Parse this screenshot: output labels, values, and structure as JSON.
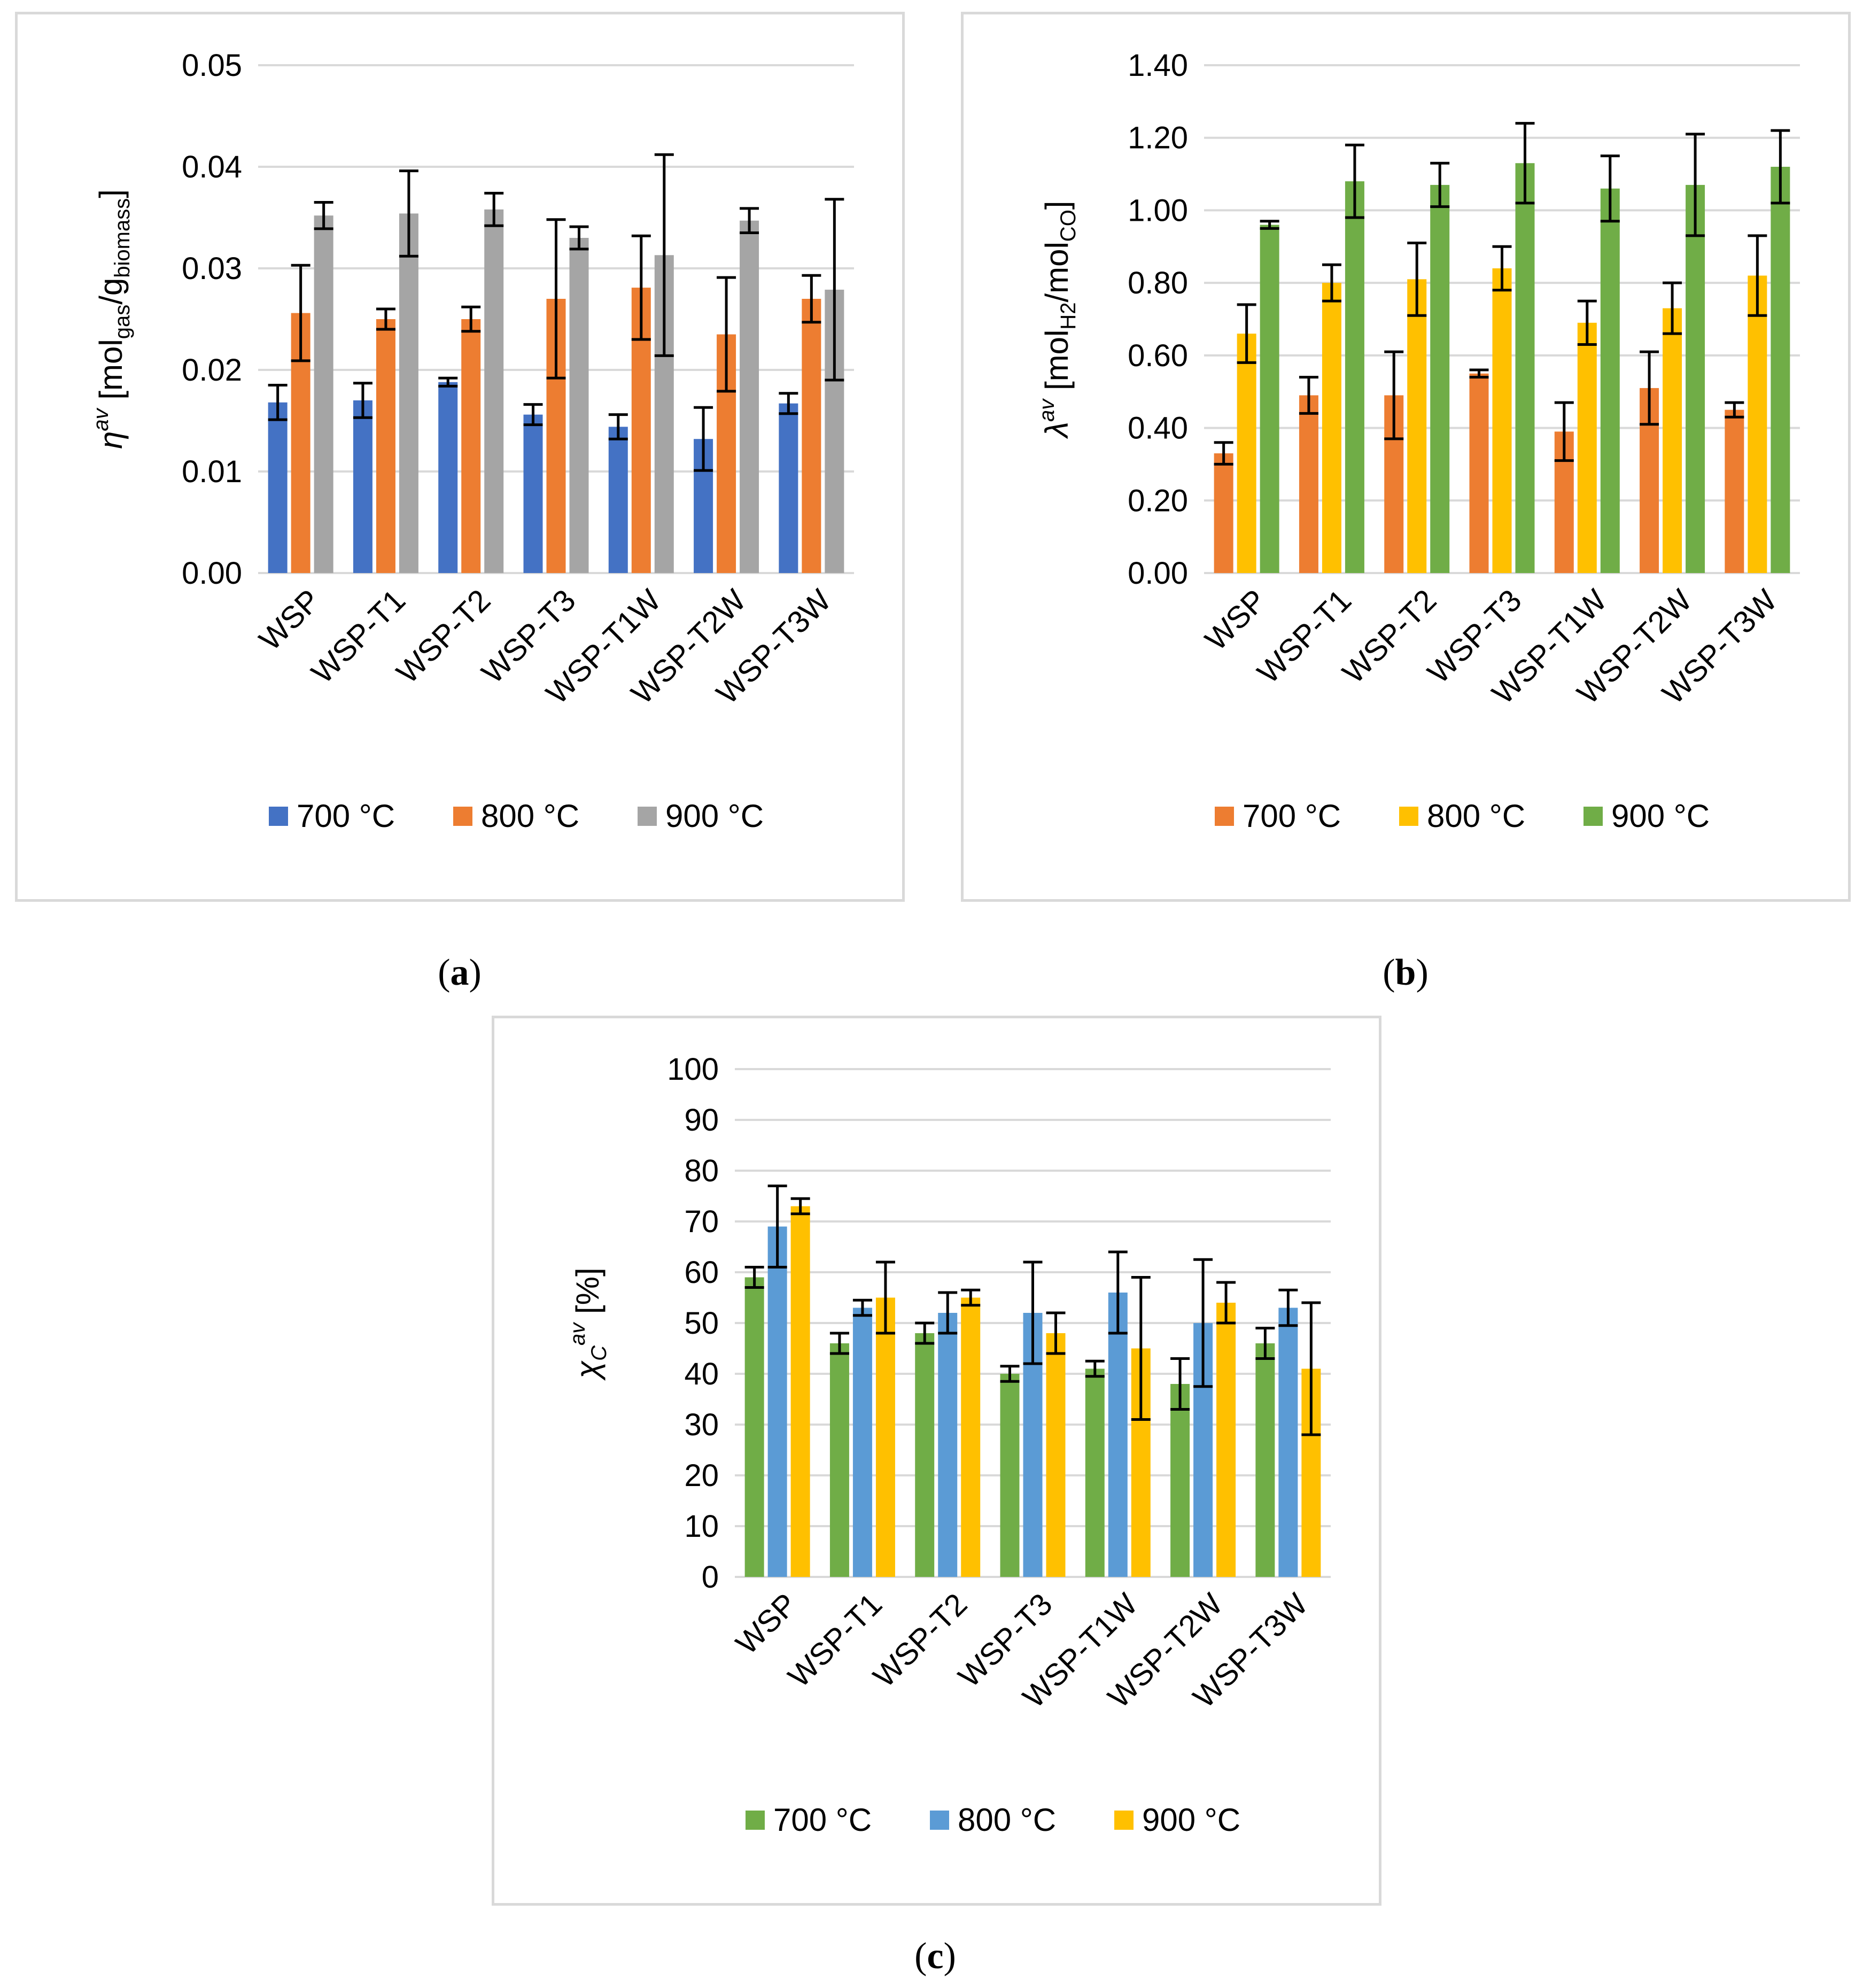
{
  "chart_data": [
    {
      "id": "a",
      "type": "bar",
      "caption_letter": "a",
      "ylabel_parts": {
        "symbol": "η",
        "sup": "av",
        "text1": " [mol",
        "sub1": "gas",
        "text2": "/g",
        "sub2": "biomass",
        "text3": "]"
      },
      "categories": [
        "WSP",
        "WSP-T1",
        "WSP-T2",
        "WSP-T3",
        "WSP-T1W",
        "WSP-T2W",
        "WSP-T3W"
      ],
      "ylim": [
        0,
        0.05
      ],
      "yticks": [
        0,
        0.01,
        0.02,
        0.03,
        0.04,
        0.05
      ],
      "ytick_labels": [
        "0.00",
        "0.01",
        "0.02",
        "0.03",
        "0.04",
        "0.05"
      ],
      "grid": true,
      "legend_position": "bottom",
      "series": [
        {
          "name": "700 °C",
          "color": "#4472c4",
          "values": [
            0.0168,
            0.017,
            0.0188,
            0.0156,
            0.0144,
            0.0132,
            0.0167
          ],
          "errors": [
            0.0017,
            0.0017,
            0.0004,
            0.001,
            0.0012,
            0.0031,
            0.001
          ]
        },
        {
          "name": "800 °C",
          "color": "#ed7d31",
          "values": [
            0.0256,
            0.025,
            0.025,
            0.027,
            0.0281,
            0.0235,
            0.027
          ],
          "errors": [
            0.0047,
            0.001,
            0.0012,
            0.0078,
            0.0051,
            0.0056,
            0.0023
          ]
        },
        {
          "name": "900 °C",
          "color": "#a5a5a5",
          "values": [
            0.0352,
            0.0354,
            0.0358,
            0.033,
            0.0313,
            0.0347,
            0.0279
          ],
          "errors": [
            0.0013,
            0.0042,
            0.0016,
            0.0011,
            0.0099,
            0.0012,
            0.0089
          ]
        }
      ]
    },
    {
      "id": "b",
      "type": "bar",
      "caption_letter": "b",
      "ylabel_parts": {
        "symbol": "λ",
        "sup": "av",
        "text1": " [mol",
        "sub1": "H2",
        "text2": "/mol",
        "sub2": "CO",
        "text3": "]"
      },
      "categories": [
        "WSP",
        "WSP-T1",
        "WSP-T2",
        "WSP-T3",
        "WSP-T1W",
        "WSP-T2W",
        "WSP-T3W"
      ],
      "ylim": [
        0,
        1.4
      ],
      "yticks": [
        0,
        0.2,
        0.4,
        0.6,
        0.8,
        1.0,
        1.2,
        1.4
      ],
      "ytick_labels": [
        "0.00",
        "0.20",
        "0.40",
        "0.60",
        "0.80",
        "1.00",
        "1.20",
        "1.40"
      ],
      "grid": true,
      "legend_position": "bottom",
      "series": [
        {
          "name": "700 °C",
          "color": "#ed7d31",
          "values": [
            0.33,
            0.49,
            0.49,
            0.55,
            0.39,
            0.51,
            0.45
          ],
          "errors": [
            0.03,
            0.05,
            0.12,
            0.01,
            0.08,
            0.1,
            0.02
          ]
        },
        {
          "name": "800 °C",
          "color": "#ffc000",
          "values": [
            0.66,
            0.8,
            0.81,
            0.84,
            0.69,
            0.73,
            0.82
          ],
          "errors": [
            0.08,
            0.05,
            0.1,
            0.06,
            0.06,
            0.07,
            0.11
          ]
        },
        {
          "name": "900 °C",
          "color": "#70ad47",
          "values": [
            0.96,
            1.08,
            1.07,
            1.13,
            1.06,
            1.07,
            1.12
          ],
          "errors": [
            0.01,
            0.1,
            0.06,
            0.11,
            0.09,
            0.14,
            0.1
          ]
        }
      ]
    },
    {
      "id": "c",
      "type": "bar",
      "caption_letter": "c",
      "ylabel_parts": {
        "symbol": "χ",
        "symbol_sub": "C",
        "sup": "av",
        "text1": " [%]"
      },
      "categories": [
        "WSP",
        "WSP-T1",
        "WSP-T2",
        "WSP-T3",
        "WSP-T1W",
        "WSP-T2W",
        "WSP-T3W"
      ],
      "ylim": [
        0,
        100
      ],
      "yticks": [
        0,
        10,
        20,
        30,
        40,
        50,
        60,
        70,
        80,
        90,
        100
      ],
      "ytick_labels": [
        "0",
        "10",
        "20",
        "30",
        "40",
        "50",
        "60",
        "70",
        "80",
        "90",
        "100"
      ],
      "grid": true,
      "legend_position": "bottom",
      "series": [
        {
          "name": "700 °C",
          "color": "#70ad47",
          "values": [
            59,
            46,
            48,
            40,
            41,
            38,
            46
          ],
          "errors": [
            2,
            2,
            2,
            1.5,
            1.5,
            5,
            3
          ]
        },
        {
          "name": "800 °C",
          "color": "#5b9bd5",
          "values": [
            69,
            53,
            52,
            52,
            56,
            50,
            53
          ],
          "errors": [
            8,
            1.5,
            4,
            10,
            8,
            12.5,
            3.5
          ]
        },
        {
          "name": "900 °C",
          "color": "#ffc000",
          "values": [
            73,
            55,
            55,
            48,
            45,
            54,
            41
          ],
          "errors": [
            1.5,
            7,
            1.5,
            4,
            14,
            4,
            13
          ]
        }
      ]
    }
  ]
}
